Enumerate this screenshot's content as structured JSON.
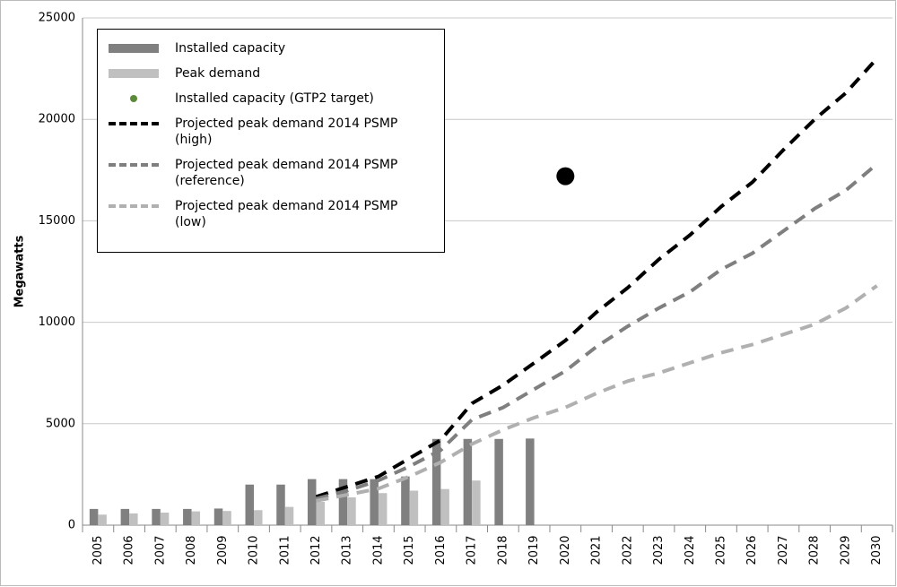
{
  "chart_data": {
    "type": "bar",
    "y_label": "Megawatts",
    "categories": [
      "2005",
      "2006",
      "2007",
      "2008",
      "2009",
      "2010",
      "2011",
      "2012",
      "2013",
      "2014",
      "2015",
      "2016",
      "2017",
      "2018",
      "2019",
      "2020",
      "2021",
      "2022",
      "2023",
      "2024",
      "2025",
      "2026",
      "2027",
      "2028",
      "2029",
      "2030"
    ],
    "ylim": [
      0,
      25000
    ],
    "yticks": [
      0,
      5000,
      10000,
      15000,
      20000,
      25000
    ],
    "grid": true,
    "series": [
      {
        "name": "Installed capacity",
        "type": "bar",
        "color": "#808080",
        "values": [
          800,
          800,
          800,
          800,
          820,
          2000,
          2000,
          2270,
          2270,
          2270,
          2400,
          4250,
          4250,
          4250,
          4270,
          null,
          null,
          null,
          null,
          null,
          null,
          null,
          null,
          null,
          null,
          null
        ]
      },
      {
        "name": "Peak demand",
        "type": "bar",
        "color": "#c0c0c0",
        "values": [
          520,
          580,
          620,
          680,
          700,
          740,
          900,
          1150,
          1370,
          1580,
          1700,
          1780,
          2200,
          null,
          null,
          null,
          null,
          null,
          null,
          null,
          null,
          null,
          null,
          null,
          null,
          null
        ]
      },
      {
        "name": "Installed capacity (GTP2 target)",
        "type": "scatter",
        "color": "#5a8a3a",
        "marker_color": "#000000",
        "values": [
          null,
          null,
          null,
          null,
          null,
          null,
          null,
          null,
          null,
          null,
          null,
          null,
          null,
          null,
          null,
          17200,
          null,
          null,
          null,
          null,
          null,
          null,
          null,
          null,
          null,
          null
        ]
      },
      {
        "name": "Projected peak demand 2014 PSMP (high)",
        "type": "line",
        "color": "#000000",
        "values": [
          null,
          null,
          null,
          null,
          null,
          null,
          null,
          1400,
          1900,
          2400,
          3300,
          4200,
          6000,
          6900,
          8000,
          9100,
          10500,
          11700,
          13100,
          14300,
          15700,
          16900,
          18500,
          20000,
          21300,
          23000
        ]
      },
      {
        "name": "Projected peak demand 2014 PSMP (reference)",
        "type": "line",
        "color": "#7f7f7f",
        "values": [
          null,
          null,
          null,
          null,
          null,
          null,
          null,
          1300,
          1700,
          2200,
          2900,
          3700,
          5200,
          5800,
          6700,
          7600,
          8800,
          9800,
          10700,
          11500,
          12600,
          13400,
          14500,
          15600,
          16500,
          17800
        ]
      },
      {
        "name": "Projected peak demand 2014 PSMP (low)",
        "type": "line",
        "color": "#b0b0b0",
        "values": [
          null,
          null,
          null,
          null,
          null,
          null,
          null,
          1200,
          1500,
          1800,
          2400,
          3100,
          4000,
          4700,
          5300,
          5800,
          6500,
          7100,
          7500,
          8000,
          8500,
          8900,
          9400,
          9900,
          10700,
          11800
        ]
      }
    ]
  }
}
